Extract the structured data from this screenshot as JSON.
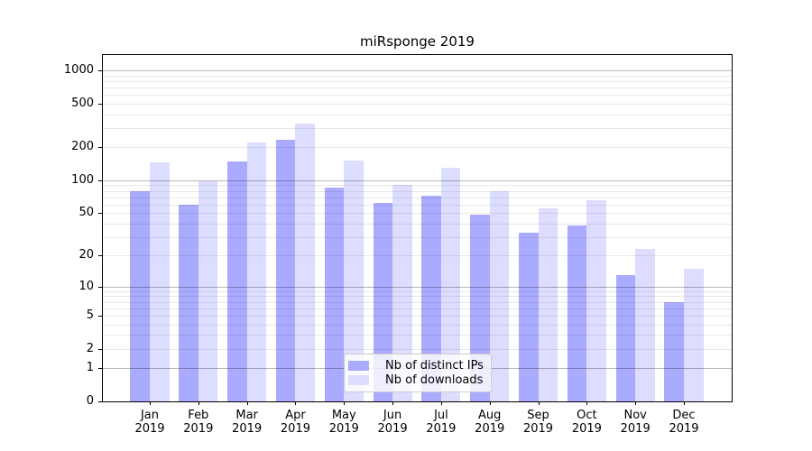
{
  "title": "miRsponge 2019",
  "colors": {
    "ips_bar": "#aaaaff",
    "downloads_bar": "#ddddff",
    "grid_major": "#b8b8b8",
    "grid_minor": "#e8e8e8",
    "axis": "#000000",
    "legend_border": "#cccccc",
    "background": "#ffffff"
  },
  "legend": {
    "position": "lower center",
    "items": [
      {
        "label": "Nb of distinct IPs",
        "color": "#aaaaff"
      },
      {
        "label": "Nb of downloads",
        "color": "#ddddff"
      }
    ]
  },
  "chart_data": {
    "type": "bar",
    "title": "miRsponge 2019",
    "categories": [
      "Jan 2019",
      "Feb 2019",
      "Mar 2019",
      "Apr 2019",
      "May 2019",
      "Jun 2019",
      "Jul 2019",
      "Aug 2019",
      "Sep 2019",
      "Oct 2019",
      "Nov 2019",
      "Dec 2019"
    ],
    "series": [
      {
        "name": "Nb of distinct IPs",
        "color": "#aaaaff",
        "values": [
          80,
          60,
          148,
          233,
          85,
          62,
          72,
          48,
          33,
          38,
          13,
          7
        ]
      },
      {
        "name": "Nb of downloads",
        "color": "#ddddff",
        "values": [
          145,
          97,
          220,
          327,
          150,
          90,
          130,
          80,
          55,
          65,
          23,
          15
        ]
      }
    ],
    "xlabel": "",
    "ylabel": "",
    "yscale": "log10(1+x)",
    "ylim": [
      0,
      1377
    ],
    "yticks": [
      0,
      1,
      2,
      5,
      10,
      20,
      50,
      100,
      200,
      500,
      1000
    ],
    "ytick_labels": [
      "0",
      "1",
      "2",
      "5",
      "10",
      "20",
      "50",
      "100",
      "200",
      "500",
      "1000"
    ],
    "grid": true,
    "grid_major_at": [
      1,
      10,
      100,
      1000
    ],
    "legend_position": "lower center"
  }
}
